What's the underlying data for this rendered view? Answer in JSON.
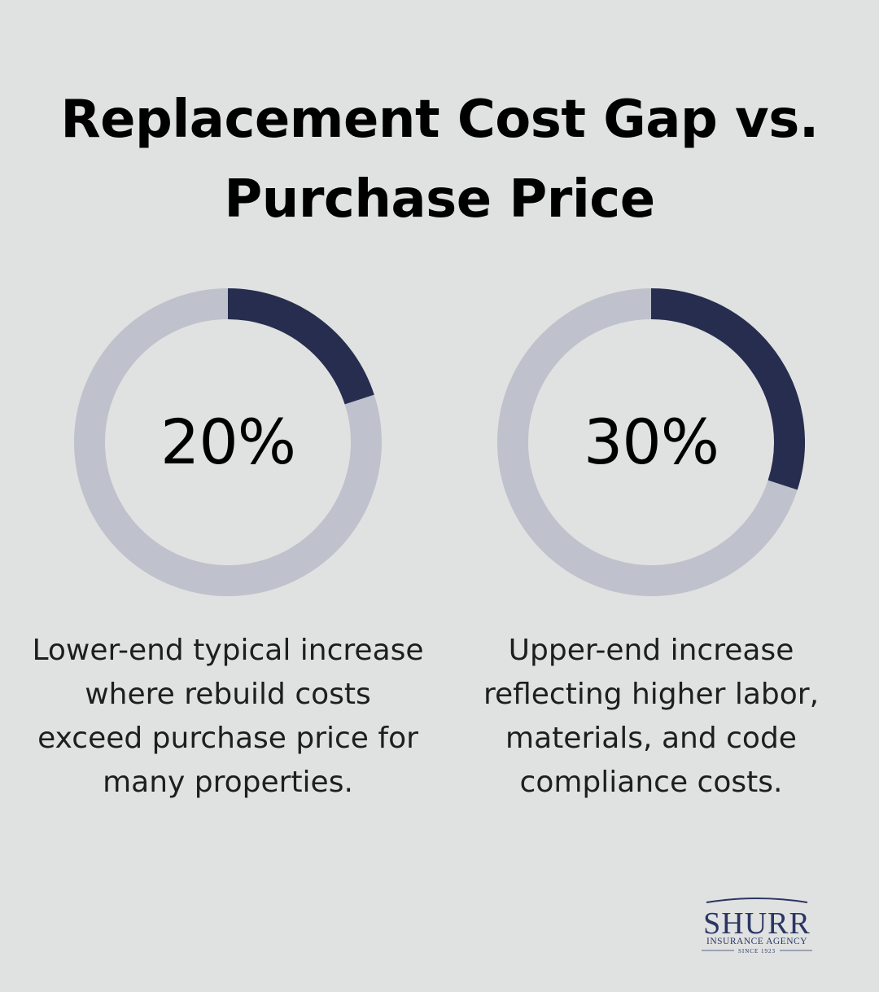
{
  "title": {
    "line1": "Replacement Cost Gap vs.",
    "line2": "Purchase Price"
  },
  "colors": {
    "background": "#e0e2e1",
    "filled": "#262d4f",
    "track": "#bfc1cc"
  },
  "chart_data": [
    {
      "type": "pie",
      "variant": "donut",
      "value": 20,
      "max": 100,
      "label": "20%",
      "description": [
        "Lower-end typical increase",
        "where rebuild costs",
        "exceed purchase price for",
        "many properties."
      ]
    },
    {
      "type": "pie",
      "variant": "donut",
      "value": 30,
      "max": 100,
      "label": "30%",
      "description": [
        "Upper-end increase",
        "reflecting higher labor,",
        "materials, and code",
        "compliance costs."
      ]
    }
  ],
  "logo": {
    "name": "SHURR",
    "tagline": "INSURANCE AGENCY",
    "since": "SINCE 1923",
    "color": "#2b3563"
  }
}
